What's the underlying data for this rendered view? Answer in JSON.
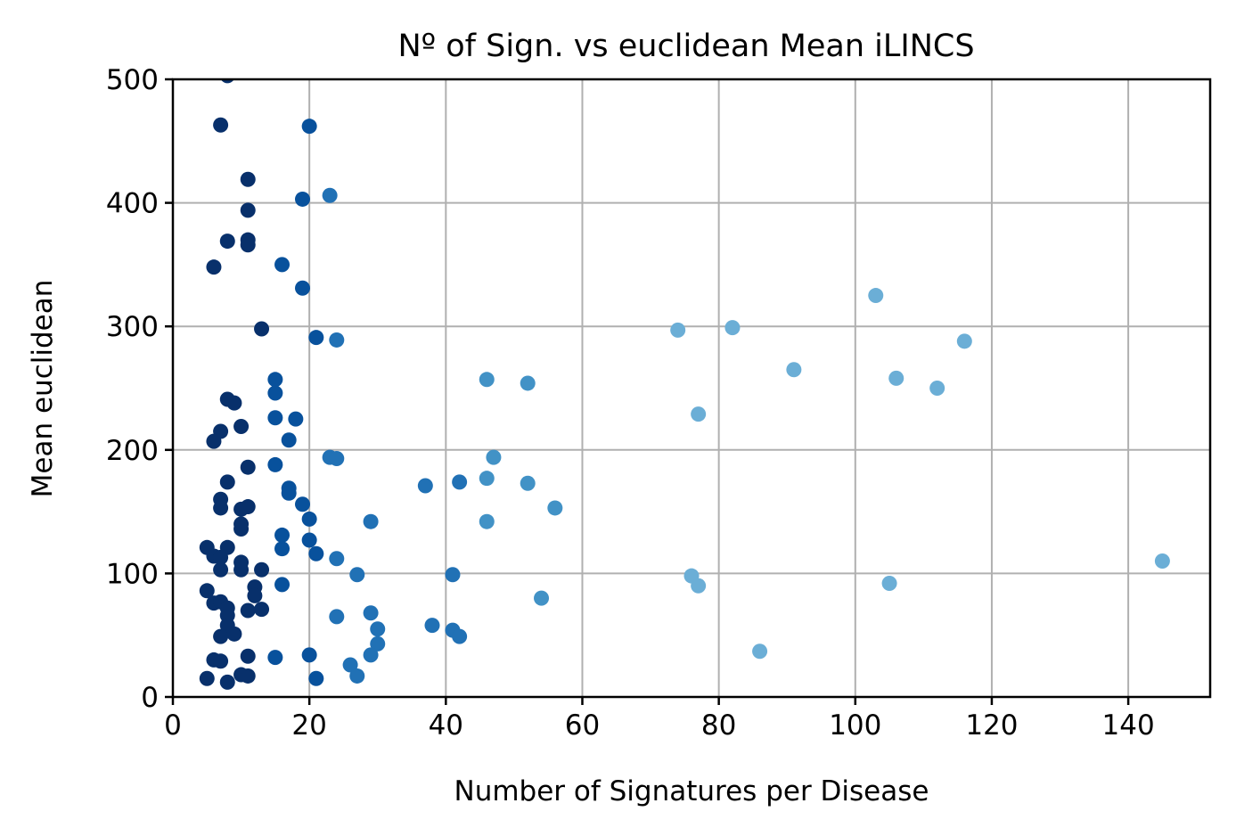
{
  "chart_data": {
    "type": "scatter",
    "title": "Nº of Sign. vs euclidean Mean iLINCS",
    "xlabel": "Number of Signatures per Disease",
    "ylabel": "Mean euclidean",
    "xlim": [
      0,
      152
    ],
    "ylim": [
      0,
      500
    ],
    "xticks": [
      0,
      20,
      40,
      60,
      80,
      100,
      120,
      140
    ],
    "yticks": [
      0,
      100,
      200,
      300,
      400,
      500
    ],
    "grid": true,
    "colormap": "Blues (darker = fewer signatures)",
    "colors": {
      "darkest": "#08306b",
      "dark": "#08519c",
      "mid": "#2171b5",
      "light": "#4292c6",
      "lightest": "#6baed6"
    },
    "points": [
      {
        "x": 8,
        "y": 503
      },
      {
        "x": 7,
        "y": 463
      },
      {
        "x": 20,
        "y": 462
      },
      {
        "x": 11,
        "y": 419
      },
      {
        "x": 23,
        "y": 406
      },
      {
        "x": 19,
        "y": 403
      },
      {
        "x": 11,
        "y": 394
      },
      {
        "x": 8,
        "y": 369
      },
      {
        "x": 11,
        "y": 370
      },
      {
        "x": 11,
        "y": 366
      },
      {
        "x": 6,
        "y": 348
      },
      {
        "x": 16,
        "y": 350
      },
      {
        "x": 19,
        "y": 331
      },
      {
        "x": 13,
        "y": 298
      },
      {
        "x": 21,
        "y": 291
      },
      {
        "x": 24,
        "y": 289
      },
      {
        "x": 15,
        "y": 257
      },
      {
        "x": 15,
        "y": 246
      },
      {
        "x": 8,
        "y": 241
      },
      {
        "x": 9,
        "y": 238
      },
      {
        "x": 15,
        "y": 226
      },
      {
        "x": 18,
        "y": 225
      },
      {
        "x": 10,
        "y": 219
      },
      {
        "x": 7,
        "y": 215
      },
      {
        "x": 6,
        "y": 207
      },
      {
        "x": 17,
        "y": 208
      },
      {
        "x": 23,
        "y": 194
      },
      {
        "x": 24,
        "y": 193
      },
      {
        "x": 15,
        "y": 188
      },
      {
        "x": 11,
        "y": 186
      },
      {
        "x": 8,
        "y": 174
      },
      {
        "x": 17,
        "y": 169
      },
      {
        "x": 17,
        "y": 165
      },
      {
        "x": 7,
        "y": 160
      },
      {
        "x": 19,
        "y": 156
      },
      {
        "x": 7,
        "y": 153
      },
      {
        "x": 11,
        "y": 154
      },
      {
        "x": 10,
        "y": 152
      },
      {
        "x": 20,
        "y": 144
      },
      {
        "x": 10,
        "y": 140
      },
      {
        "x": 10,
        "y": 136
      },
      {
        "x": 29,
        "y": 142
      },
      {
        "x": 16,
        "y": 131
      },
      {
        "x": 20,
        "y": 127
      },
      {
        "x": 5,
        "y": 121
      },
      {
        "x": 8,
        "y": 121
      },
      {
        "x": 16,
        "y": 120
      },
      {
        "x": 21,
        "y": 116
      },
      {
        "x": 6,
        "y": 114
      },
      {
        "x": 7,
        "y": 113
      },
      {
        "x": 24,
        "y": 112
      },
      {
        "x": 10,
        "y": 109
      },
      {
        "x": 7,
        "y": 103
      },
      {
        "x": 10,
        "y": 103
      },
      {
        "x": 13,
        "y": 103
      },
      {
        "x": 27,
        "y": 99
      },
      {
        "x": 16,
        "y": 91
      },
      {
        "x": 12,
        "y": 89
      },
      {
        "x": 5,
        "y": 86
      },
      {
        "x": 12,
        "y": 82
      },
      {
        "x": 6,
        "y": 76
      },
      {
        "x": 7,
        "y": 77
      },
      {
        "x": 8,
        "y": 72
      },
      {
        "x": 11,
        "y": 70
      },
      {
        "x": 13,
        "y": 71
      },
      {
        "x": 29,
        "y": 68
      },
      {
        "x": 8,
        "y": 66
      },
      {
        "x": 24,
        "y": 65
      },
      {
        "x": 8,
        "y": 58
      },
      {
        "x": 30,
        "y": 55
      },
      {
        "x": 9,
        "y": 51
      },
      {
        "x": 7,
        "y": 49
      },
      {
        "x": 30,
        "y": 43
      },
      {
        "x": 20,
        "y": 34
      },
      {
        "x": 29,
        "y": 34
      },
      {
        "x": 11,
        "y": 33
      },
      {
        "x": 15,
        "y": 32
      },
      {
        "x": 6,
        "y": 30
      },
      {
        "x": 7,
        "y": 29
      },
      {
        "x": 26,
        "y": 26
      },
      {
        "x": 10,
        "y": 18
      },
      {
        "x": 11,
        "y": 17
      },
      {
        "x": 27,
        "y": 17
      },
      {
        "x": 5,
        "y": 15
      },
      {
        "x": 21,
        "y": 15
      },
      {
        "x": 8,
        "y": 12
      },
      {
        "x": 37,
        "y": 171
      },
      {
        "x": 42,
        "y": 174
      },
      {
        "x": 46,
        "y": 177
      },
      {
        "x": 46,
        "y": 257
      },
      {
        "x": 47,
        "y": 194
      },
      {
        "x": 52,
        "y": 254
      },
      {
        "x": 52,
        "y": 173
      },
      {
        "x": 56,
        "y": 153
      },
      {
        "x": 46,
        "y": 142
      },
      {
        "x": 41,
        "y": 99
      },
      {
        "x": 54,
        "y": 80
      },
      {
        "x": 38,
        "y": 58
      },
      {
        "x": 41,
        "y": 54
      },
      {
        "x": 42,
        "y": 49
      },
      {
        "x": 74,
        "y": 297
      },
      {
        "x": 82,
        "y": 299
      },
      {
        "x": 77,
        "y": 229
      },
      {
        "x": 91,
        "y": 265
      },
      {
        "x": 103,
        "y": 325
      },
      {
        "x": 106,
        "y": 258
      },
      {
        "x": 112,
        "y": 250
      },
      {
        "x": 116,
        "y": 288
      },
      {
        "x": 76,
        "y": 98
      },
      {
        "x": 77,
        "y": 90
      },
      {
        "x": 105,
        "y": 92
      },
      {
        "x": 86,
        "y": 37
      },
      {
        "x": 145,
        "y": 110
      }
    ]
  }
}
